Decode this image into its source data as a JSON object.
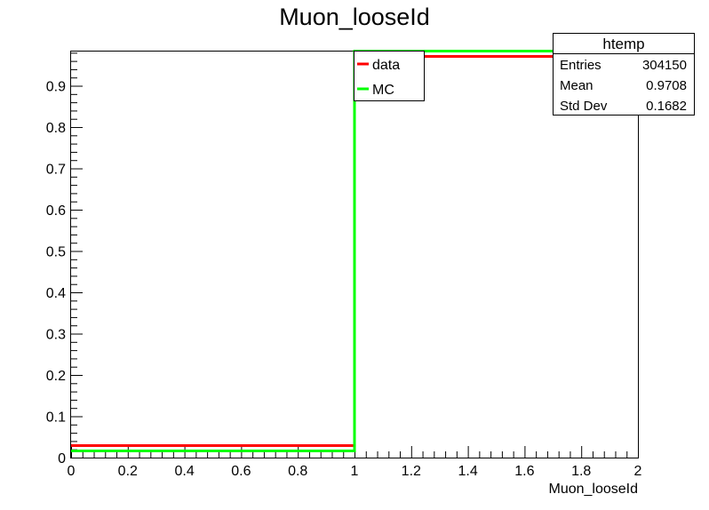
{
  "chart_data": {
    "type": "line",
    "title": "Muon_looseId",
    "xlabel": "Muon_looseId",
    "ylabel": "",
    "xlim": [
      0,
      2
    ],
    "ylim": [
      0,
      0.985
    ],
    "x_ticks": [
      "0",
      "0.2",
      "0.4",
      "0.6",
      "0.8",
      "1",
      "1.2",
      "1.4",
      "1.6",
      "1.8",
      "2"
    ],
    "y_ticks": [
      "0",
      "0.1",
      "0.2",
      "0.3",
      "0.4",
      "0.5",
      "0.6",
      "0.7",
      "0.8",
      "0.9"
    ],
    "bin_edges": [
      0,
      1,
      2
    ],
    "series": [
      {
        "name": "data",
        "color": "#ff0000",
        "values": [
          0.029,
          0.971
        ]
      },
      {
        "name": "MC",
        "color": "#00ff00",
        "values": [
          0.016,
          0.984
        ]
      }
    ],
    "legend": {
      "placement": "top-center",
      "entries": [
        "data",
        "MC"
      ]
    },
    "stats_box": {
      "title": "htemp",
      "rows": [
        {
          "label": "Entries",
          "value": "304150"
        },
        {
          "label": "Mean",
          "value": "0.9708"
        },
        {
          "label": "Std Dev",
          "value": "0.1682"
        }
      ]
    },
    "grid": false
  }
}
